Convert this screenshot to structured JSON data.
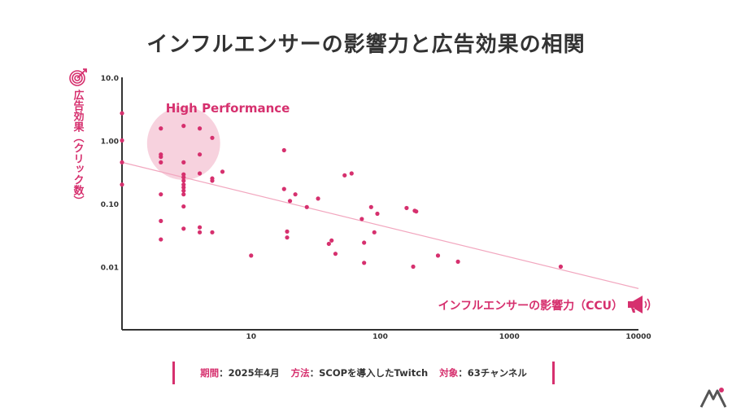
{
  "title": "インフルエンサーの影響力と広告効果の相関",
  "colors": {
    "accent": "#d6306e",
    "accent_light": "#f7d2de",
    "trend": "#f2a7bf",
    "text": "#333333"
  },
  "icons": {
    "y": "target-icon",
    "x": "megaphone-icon",
    "logo": "logo-icon"
  },
  "footer": {
    "period_label": "期間",
    "period_value": "：2025年4月",
    "method_label": "方法",
    "method_value": "：SCOPを導入したTwitch",
    "target_label": "対象",
    "target_value": "：63チャンネル"
  },
  "chart_data": {
    "type": "scatter",
    "title": "インフルエンサーの影響力と広告効果の相関",
    "xlabel": "インフルエンサーの影響力（CCU）",
    "ylabel": "広告効果（クリック数）",
    "xscale": "log",
    "yscale": "log",
    "xlim": [
      1,
      10000
    ],
    "ylim": [
      0.001,
      10
    ],
    "x_ticks": [
      {
        "value": 10,
        "label": "10"
      },
      {
        "value": 100,
        "label": "100"
      },
      {
        "value": 1000,
        "label": "1000"
      },
      {
        "value": 10000,
        "label": "10000"
      }
    ],
    "y_ticks": [
      {
        "value": 10,
        "label": "10.0"
      },
      {
        "value": 1,
        "label": "1.00"
      },
      {
        "value": 0.1,
        "label": "0.10"
      },
      {
        "value": 0.01,
        "label": "0.01"
      }
    ],
    "highlight": {
      "label": "High Performance",
      "center": [
        3,
        0.9
      ],
      "radius_decades": 0.58
    },
    "trendline": {
      "start": [
        1,
        0.45
      ],
      "end": [
        10000,
        0.0045
      ]
    },
    "grid": false,
    "series": [
      {
        "points": [
          [
            1,
            0.2
          ],
          [
            1,
            2.7
          ],
          [
            1,
            0.45
          ],
          [
            1,
            1.0
          ],
          [
            2,
            1.55
          ],
          [
            2,
            0.6
          ],
          [
            2,
            0.55
          ],
          [
            2,
            0.45
          ],
          [
            2,
            0.14
          ],
          [
            2,
            0.053
          ],
          [
            2,
            0.027
          ],
          [
            3,
            1.7
          ],
          [
            3,
            0.45
          ],
          [
            3,
            0.29
          ],
          [
            3,
            0.26
          ],
          [
            3,
            0.23
          ],
          [
            3,
            0.2
          ],
          [
            3,
            0.18
          ],
          [
            3,
            0.16
          ],
          [
            3,
            0.14
          ],
          [
            3,
            0.09
          ],
          [
            3,
            0.04
          ],
          [
            4,
            1.55
          ],
          [
            4,
            0.6
          ],
          [
            4,
            0.3
          ],
          [
            4,
            0.042
          ],
          [
            4,
            0.035
          ],
          [
            5,
            1.1
          ],
          [
            5,
            0.25
          ],
          [
            5,
            0.23
          ],
          [
            5,
            0.035
          ],
          [
            6,
            0.32
          ],
          [
            10,
            0.015
          ],
          [
            18,
            0.7
          ],
          [
            18,
            0.17
          ],
          [
            19,
            0.036
          ],
          [
            19,
            0.029
          ],
          [
            20,
            0.11
          ],
          [
            22,
            0.14
          ],
          [
            27,
            0.088
          ],
          [
            33,
            0.12
          ],
          [
            40,
            0.023
          ],
          [
            42,
            0.026
          ],
          [
            45,
            0.016
          ],
          [
            53,
            0.28
          ],
          [
            60,
            0.3
          ],
          [
            72,
            0.057
          ],
          [
            75,
            0.024
          ],
          [
            75,
            0.0115
          ],
          [
            85,
            0.088
          ],
          [
            90,
            0.035
          ],
          [
            95,
            0.069
          ],
          [
            160,
            0.085
          ],
          [
            185,
            0.077
          ],
          [
            190,
            0.075
          ],
          [
            180,
            0.01
          ],
          [
            280,
            0.015
          ],
          [
            400,
            0.012
          ],
          [
            2500,
            0.01
          ]
        ]
      }
    ]
  }
}
